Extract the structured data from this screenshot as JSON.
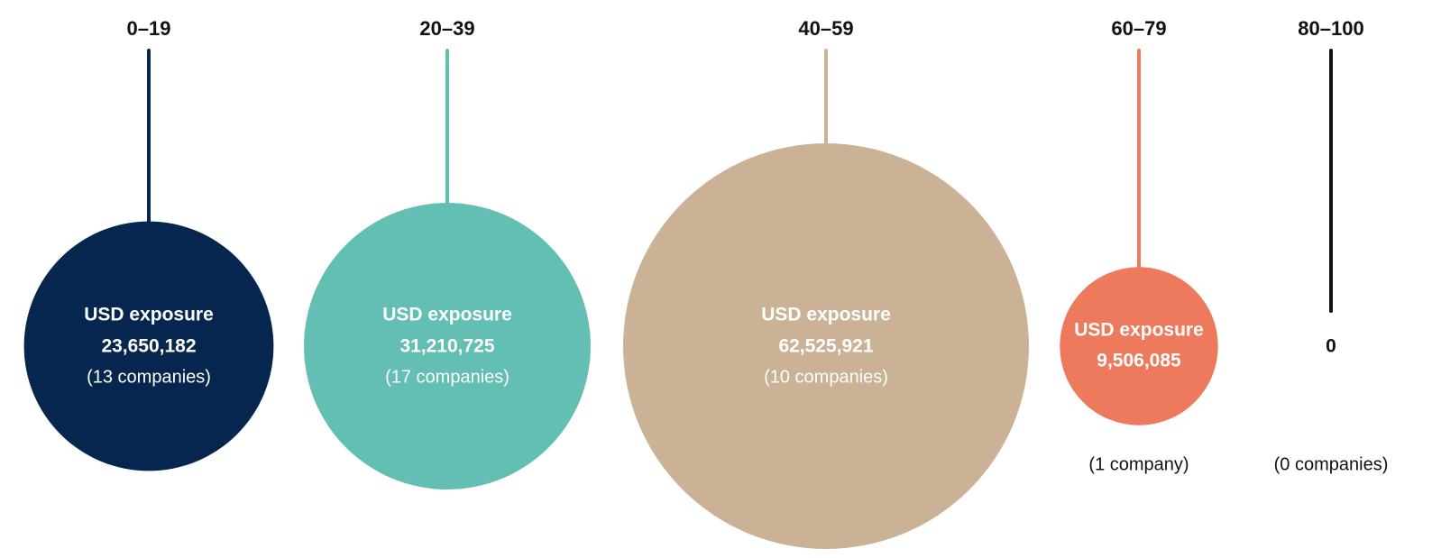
{
  "chart_data": {
    "type": "bubble",
    "metric_label": "USD exposure",
    "grid": false,
    "legend": "none",
    "categories": [
      {
        "range": "0–19",
        "value": 23650182,
        "value_label": "23,650,182",
        "companies": 13,
        "count_label": "(13 companies)",
        "color": "#06264F"
      },
      {
        "range": "20–39",
        "value": 31210725,
        "value_label": "31,210,725",
        "companies": 17,
        "count_label": "(17 companies)",
        "color": "#63BEB3"
      },
      {
        "range": "40–59",
        "value": 62525921,
        "value_label": "62,525,921",
        "companies": 10,
        "count_label": "(10 companies)",
        "color": "#CBB297"
      },
      {
        "range": "60–79",
        "value": 9506085,
        "value_label": "9,506,085",
        "companies": 1,
        "count_label": "(1 company)",
        "color": "#EE7A5D"
      },
      {
        "range": "80–100",
        "value": 0,
        "value_label": "0",
        "companies": 0,
        "count_label": "(0 companies)",
        "color": "#111111"
      }
    ]
  }
}
